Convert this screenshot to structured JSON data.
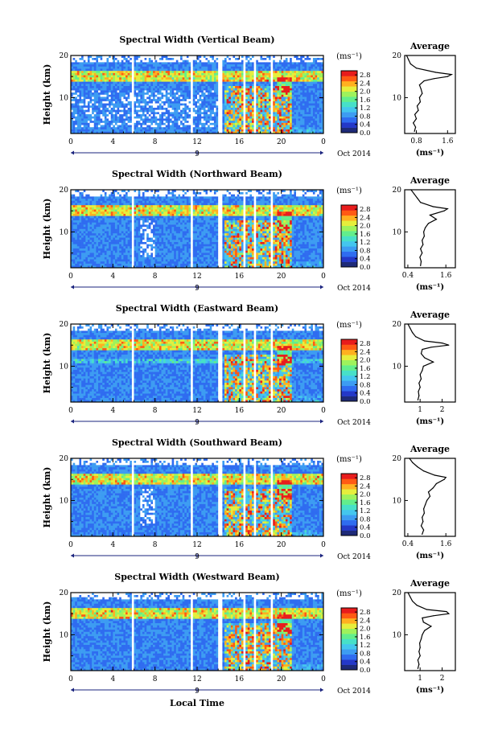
{
  "figure": {
    "x_axis_label": "Local Time",
    "date_label": "Oct 2014",
    "day_label": "9",
    "panel_ylabel": "Height (km)",
    "colorbar_unit": "(ms⁻¹)",
    "avg_title": "Average",
    "avg_unit": "(ms⁻¹)"
  },
  "colors": {
    "scale": [
      "#1e2a78",
      "#2438c8",
      "#2f6cf0",
      "#3d9cf2",
      "#44c6ee",
      "#47e0c8",
      "#62ee8c",
      "#9ef25c",
      "#e6ee3c",
      "#ffb020",
      "#ff5a14",
      "#e81c1c"
    ],
    "missing": "#ffffff",
    "profile_line": "#000000"
  },
  "chart_data": [
    {
      "type": "heatmap",
      "title": "Spectral Width (Vertical Beam)",
      "x_ticks": [
        "0",
        "4",
        "8",
        "12",
        "16",
        "20",
        "0"
      ],
      "y_ticks": [
        "20",
        "10"
      ],
      "xlim": [
        0,
        24
      ],
      "ylim": [
        1.5,
        20
      ],
      "colorbar_ticks": [
        "2.8",
        "2.4",
        "2.0",
        "1.6",
        "1.2",
        "0.8",
        "0.4",
        "0.0"
      ],
      "colorbar_range": [
        0,
        3.0
      ],
      "data_gaps_hours": [
        [
          5.8,
          6.0
        ],
        [
          10.3,
          10.45
        ],
        [
          11.4,
          11.55
        ],
        [
          12.3,
          12.45
        ],
        [
          14.1,
          14.3
        ],
        [
          16.4,
          16.6
        ],
        [
          17.5,
          17.65
        ],
        [
          19.0,
          19.2
        ]
      ],
      "average_profile": {
        "title": "Average",
        "x_ticks": [
          "0.8",
          "1.6"
        ],
        "xlim": [
          0.5,
          1.8
        ],
        "y_ticks": [
          "20",
          "10"
        ],
        "ylim": [
          1.5,
          20
        ],
        "height_km": [
          2,
          3,
          4,
          5,
          6,
          7,
          8,
          9,
          10,
          11,
          12,
          13,
          14,
          14.5,
          15,
          15.5,
          16,
          17,
          18,
          19,
          20
        ],
        "width": [
          0.75,
          0.78,
          0.72,
          0.8,
          0.76,
          0.85,
          0.82,
          0.9,
          0.88,
          0.95,
          0.92,
          0.88,
          1.0,
          1.25,
          1.6,
          1.7,
          1.3,
          0.8,
          0.65,
          0.6,
          0.55
        ]
      }
    },
    {
      "type": "heatmap",
      "title": "Spectral Width (Northward Beam)",
      "x_ticks": [
        "0",
        "4",
        "8",
        "12",
        "16",
        "20",
        "0"
      ],
      "y_ticks": [
        "20",
        "10"
      ],
      "xlim": [
        0,
        24
      ],
      "ylim": [
        1.5,
        20
      ],
      "colorbar_ticks": [
        "2.8",
        "2.4",
        "2.0",
        "1.6",
        "1.2",
        "0.8",
        "0.4",
        "0.0"
      ],
      "colorbar_range": [
        0,
        3.0
      ],
      "data_gaps_hours": [
        [
          5.8,
          6.0
        ],
        [
          10.3,
          10.45
        ],
        [
          11.4,
          11.55
        ],
        [
          12.3,
          12.45
        ],
        [
          14.1,
          14.3
        ],
        [
          16.4,
          16.6
        ],
        [
          17.5,
          17.65
        ],
        [
          19.0,
          19.2
        ]
      ],
      "average_profile": {
        "title": "Average",
        "x_ticks": [
          "0.4",
          "1.6"
        ],
        "xlim": [
          0.3,
          1.9
        ],
        "y_ticks": [
          "20",
          "10"
        ],
        "ylim": [
          1.5,
          20
        ],
        "height_km": [
          2,
          3,
          4,
          5,
          6,
          7,
          8,
          9,
          10,
          11,
          12,
          13,
          14,
          15,
          15.5,
          16,
          17,
          18,
          19,
          20
        ],
        "width": [
          0.8,
          0.82,
          0.78,
          0.85,
          0.8,
          0.88,
          0.85,
          0.92,
          0.9,
          0.95,
          1.05,
          1.3,
          1.1,
          1.55,
          1.65,
          1.2,
          0.8,
          0.7,
          0.6,
          0.5
        ]
      }
    },
    {
      "type": "heatmap",
      "title": "Spectral Width (Eastward Beam)",
      "x_ticks": [
        "0",
        "4",
        "8",
        "12",
        "16",
        "20",
        "0"
      ],
      "y_ticks": [
        "20",
        "10"
      ],
      "xlim": [
        0,
        24
      ],
      "ylim": [
        1.5,
        20
      ],
      "colorbar_ticks": [
        "2.8",
        "2.4",
        "2.0",
        "1.6",
        "1.2",
        "0.8",
        "0.4",
        "0.0"
      ],
      "colorbar_range": [
        0,
        3.0
      ],
      "data_gaps_hours": [
        [
          5.8,
          6.0
        ],
        [
          10.3,
          10.45
        ],
        [
          11.4,
          11.55
        ],
        [
          12.3,
          12.45
        ],
        [
          14.1,
          14.3
        ],
        [
          16.4,
          16.6
        ],
        [
          17.5,
          17.65
        ],
        [
          19.0,
          19.2
        ]
      ],
      "average_profile": {
        "title": "Average",
        "x_ticks": [
          "1",
          "2"
        ],
        "xlim": [
          0.3,
          2.6
        ],
        "y_ticks": [
          "20",
          "10"
        ],
        "ylim": [
          1.5,
          20
        ],
        "height_km": [
          2,
          3,
          4,
          5,
          6,
          7,
          8,
          9,
          10,
          11,
          12,
          13,
          14,
          14.5,
          15,
          15.5,
          16,
          17,
          18,
          19,
          20
        ],
        "width": [
          0.9,
          0.95,
          0.92,
          1.0,
          0.95,
          1.05,
          1.0,
          1.1,
          1.15,
          1.6,
          1.2,
          1.05,
          1.1,
          1.5,
          2.3,
          2.0,
          1.2,
          0.8,
          0.65,
          0.55,
          0.45
        ]
      }
    },
    {
      "type": "heatmap",
      "title": "Spectral Width (Southward Beam)",
      "x_ticks": [
        "0",
        "4",
        "8",
        "12",
        "16",
        "20",
        "0"
      ],
      "y_ticks": [
        "20",
        "10"
      ],
      "xlim": [
        0,
        24
      ],
      "ylim": [
        1.5,
        20
      ],
      "colorbar_ticks": [
        "2.8",
        "2.4",
        "2.0",
        "1.6",
        "1.2",
        "0.8",
        "0.4",
        "0.0"
      ],
      "colorbar_range": [
        0,
        3.0
      ],
      "data_gaps_hours": [
        [
          5.8,
          6.0
        ],
        [
          10.3,
          10.45
        ],
        [
          11.4,
          11.55
        ],
        [
          12.3,
          12.45
        ],
        [
          14.1,
          14.3
        ],
        [
          16.4,
          16.6
        ],
        [
          17.5,
          17.65
        ],
        [
          19.0,
          19.2
        ]
      ],
      "average_profile": {
        "title": "Average",
        "x_ticks": [
          "0.4",
          "1.6"
        ],
        "xlim": [
          0.3,
          1.9
        ],
        "y_ticks": [
          "20",
          "10"
        ],
        "ylim": [
          1.5,
          20
        ],
        "height_km": [
          2,
          3,
          4,
          5,
          6,
          7,
          8,
          9,
          10,
          11,
          12,
          13,
          14,
          15,
          15.5,
          16,
          17,
          18,
          19,
          20
        ],
        "width": [
          0.85,
          0.9,
          0.82,
          0.88,
          0.85,
          0.92,
          0.9,
          0.95,
          1.0,
          1.1,
          1.05,
          1.2,
          1.3,
          1.55,
          1.6,
          1.25,
          0.9,
          0.7,
          0.55,
          0.45
        ]
      }
    },
    {
      "type": "heatmap",
      "title": "Spectral Width (Westward Beam)",
      "x_ticks": [
        "0",
        "4",
        "8",
        "12",
        "16",
        "20",
        "0"
      ],
      "y_ticks": [
        "20",
        "10"
      ],
      "xlim": [
        0,
        24
      ],
      "ylim": [
        1.5,
        20
      ],
      "colorbar_ticks": [
        "2.8",
        "2.4",
        "2.0",
        "1.6",
        "1.2",
        "0.8",
        "0.4",
        "0.0"
      ],
      "colorbar_range": [
        0,
        3.0
      ],
      "data_gaps_hours": [
        [
          5.8,
          6.0
        ],
        [
          10.3,
          10.45
        ],
        [
          11.4,
          11.55
        ],
        [
          12.3,
          12.45
        ],
        [
          14.1,
          14.3
        ],
        [
          16.4,
          16.6
        ],
        [
          17.5,
          17.65
        ],
        [
          19.0,
          19.2
        ]
      ],
      "average_profile": {
        "title": "Average",
        "x_ticks": [
          "1",
          "2"
        ],
        "xlim": [
          0.3,
          2.6
        ],
        "y_ticks": [
          "20",
          "10"
        ],
        "ylim": [
          1.5,
          20
        ],
        "height_km": [
          2,
          3,
          4,
          5,
          6,
          7,
          8,
          9,
          10,
          11,
          12,
          13,
          14,
          14.5,
          15,
          15.5,
          16,
          17,
          18,
          19,
          20
        ],
        "width": [
          0.9,
          0.95,
          0.9,
          1.0,
          0.95,
          1.0,
          0.98,
          1.05,
          1.1,
          1.2,
          1.5,
          1.15,
          1.1,
          1.6,
          2.3,
          2.2,
          1.3,
          0.85,
          0.65,
          0.55,
          0.45
        ]
      }
    }
  ]
}
